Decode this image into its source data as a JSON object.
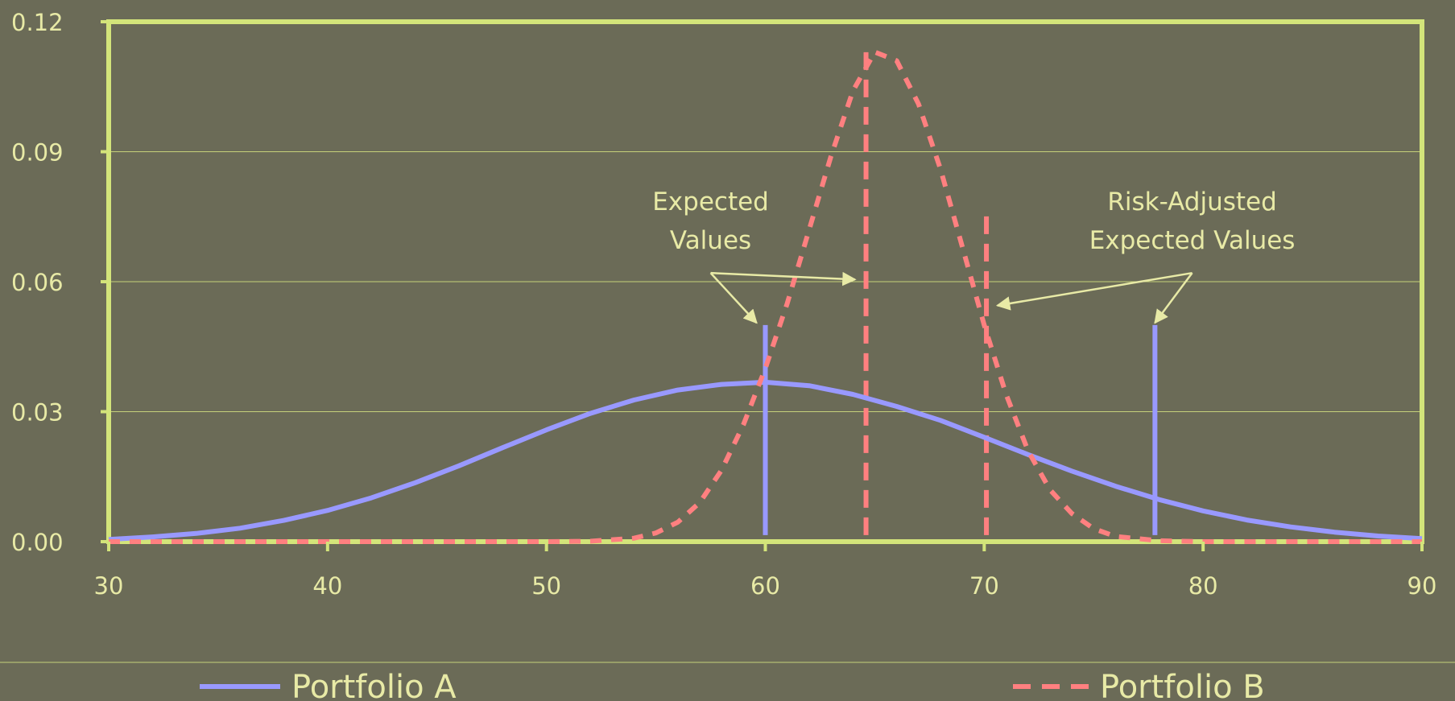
{
  "chart_data": {
    "type": "line",
    "title": "",
    "xlabel": "",
    "ylabel": "",
    "xlim": [
      30,
      90
    ],
    "ylim": [
      0,
      0.12
    ],
    "x_ticks": [
      30,
      40,
      50,
      60,
      70,
      80,
      90
    ],
    "x_tick_labels": [
      "30",
      "40",
      "50",
      "60",
      "70",
      "80",
      "90"
    ],
    "y_ticks": [
      0,
      0.03,
      0.06,
      0.09,
      0.12
    ],
    "y_tick_labels": [
      "0.00",
      "0.03",
      "0.06",
      "0.09",
      "0.12"
    ],
    "grid": "horizontal",
    "legend_position": "bottom",
    "series": [
      {
        "name": "Portfolio A",
        "style": "solid",
        "color": "#9999ff",
        "x": [
          30,
          32,
          34,
          36,
          38,
          40,
          42,
          44,
          46,
          48,
          50,
          52,
          54,
          56,
          58,
          60,
          62,
          64,
          66,
          68,
          70,
          72,
          74,
          76,
          78,
          80,
          82,
          84,
          86,
          88,
          90
        ],
        "y": [
          0.0005,
          0.0011,
          0.0019,
          0.0031,
          0.0049,
          0.0072,
          0.0101,
          0.0136,
          0.0175,
          0.0217,
          0.0258,
          0.0296,
          0.0327,
          0.035,
          0.0363,
          0.0368,
          0.036,
          0.034,
          0.0312,
          0.028,
          0.0241,
          0.0201,
          0.0163,
          0.0128,
          0.0097,
          0.0071,
          0.005,
          0.0034,
          0.0022,
          0.0013,
          0.0007
        ]
      },
      {
        "name": "Portfolio B",
        "style": "dashed",
        "color": "#ff8080",
        "x": [
          30,
          35,
          40,
          45,
          50,
          52,
          54,
          55,
          56,
          57,
          58,
          59,
          60,
          61,
          62,
          63,
          64,
          65,
          66,
          67,
          68,
          69,
          70,
          71,
          72,
          73,
          74,
          75,
          76,
          78,
          80,
          85,
          90
        ],
        "y": [
          0,
          0,
          0,
          0,
          0,
          0.0001,
          0.0008,
          0.002,
          0.0045,
          0.009,
          0.0165,
          0.027,
          0.04,
          0.055,
          0.072,
          0.089,
          0.104,
          0.113,
          0.111,
          0.101,
          0.086,
          0.068,
          0.05,
          0.034,
          0.021,
          0.012,
          0.0065,
          0.003,
          0.0012,
          0.0002,
          0,
          0,
          0
        ]
      }
    ],
    "markers": [
      {
        "series": "Portfolio A",
        "kind": "expected_value",
        "x": 60,
        "y_top": 0.05,
        "style": "solid"
      },
      {
        "series": "Portfolio B",
        "kind": "expected_value",
        "x": 64.6,
        "y_top": 0.115,
        "style": "dashed"
      },
      {
        "series": "Portfolio B",
        "kind": "risk_adjusted",
        "x": 70.1,
        "y_top": 0.076,
        "style": "dashed"
      },
      {
        "series": "Portfolio A",
        "kind": "risk_adjusted",
        "x": 77.8,
        "y_top": 0.05,
        "style": "solid"
      }
    ],
    "annotations": [
      {
        "lines": [
          "Expected",
          "Values"
        ],
        "x": 57.5,
        "y": 0.0765,
        "arrows_to": [
          [
            59.6,
            0.0505
          ],
          [
            64.1,
            0.0605
          ]
        ]
      },
      {
        "lines": [
          "Risk-Adjusted",
          "Expected Values"
        ],
        "x": 79.5,
        "y": 0.0765,
        "arrows_to": [
          [
            70.6,
            0.0545
          ],
          [
            77.8,
            0.0505
          ]
        ]
      }
    ]
  },
  "colors": {
    "background": "#6b6b57",
    "frame": "#d3e47a",
    "gridline": "#c5d07a",
    "text": "#e8eaa6",
    "portfolio_a": "#9999ff",
    "portfolio_b": "#ff8080"
  }
}
